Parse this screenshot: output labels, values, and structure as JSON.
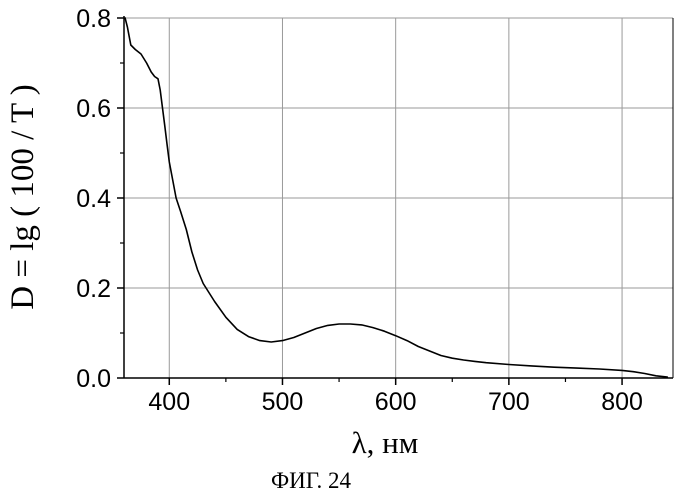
{
  "figure_caption": "ФИГ. 24",
  "chart_data": {
    "type": "line",
    "title": "",
    "xlabel": "λ, нм",
    "ylabel": "D = lg ( 100 / T )",
    "xlim": [
      360,
      845
    ],
    "ylim": [
      0.0,
      0.8
    ],
    "x_ticks": [
      400,
      500,
      600,
      700,
      800
    ],
    "x_tick_labels": [
      "400",
      "500",
      "600",
      "700",
      "800"
    ],
    "y_ticks": [
      0.0,
      0.2,
      0.4,
      0.6,
      0.8
    ],
    "y_tick_labels": [
      "0.0",
      "0.2",
      "0.4",
      "0.6",
      "0.8"
    ],
    "grid": true,
    "legend": "none",
    "colors": {
      "line": "#000000",
      "grid": "#9a9a9a",
      "axes": "#000000"
    },
    "series": [
      {
        "x": [
          361,
          363,
          366,
          370,
          375,
          380,
          384,
          387,
          390,
          392,
          394,
          396,
          398,
          400,
          403,
          406,
          410,
          415,
          420,
          425,
          430,
          440,
          450,
          460,
          470,
          480,
          490,
          500,
          510,
          520,
          530,
          540,
          550,
          560,
          570,
          580,
          590,
          600,
          610,
          620,
          630,
          640,
          650,
          660,
          670,
          680,
          700,
          720,
          740,
          760,
          780,
          800,
          810,
          820,
          830,
          840
        ],
        "y": [
          0.8,
          0.78,
          0.74,
          0.73,
          0.72,
          0.7,
          0.68,
          0.67,
          0.665,
          0.64,
          0.6,
          0.56,
          0.52,
          0.48,
          0.44,
          0.4,
          0.37,
          0.33,
          0.28,
          0.24,
          0.21,
          0.17,
          0.135,
          0.108,
          0.092,
          0.083,
          0.08,
          0.083,
          0.09,
          0.1,
          0.11,
          0.117,
          0.12,
          0.12,
          0.118,
          0.112,
          0.104,
          0.094,
          0.083,
          0.07,
          0.06,
          0.05,
          0.044,
          0.04,
          0.037,
          0.034,
          0.03,
          0.027,
          0.024,
          0.022,
          0.02,
          0.017,
          0.014,
          0.01,
          0.005,
          0.002
        ]
      }
    ]
  }
}
